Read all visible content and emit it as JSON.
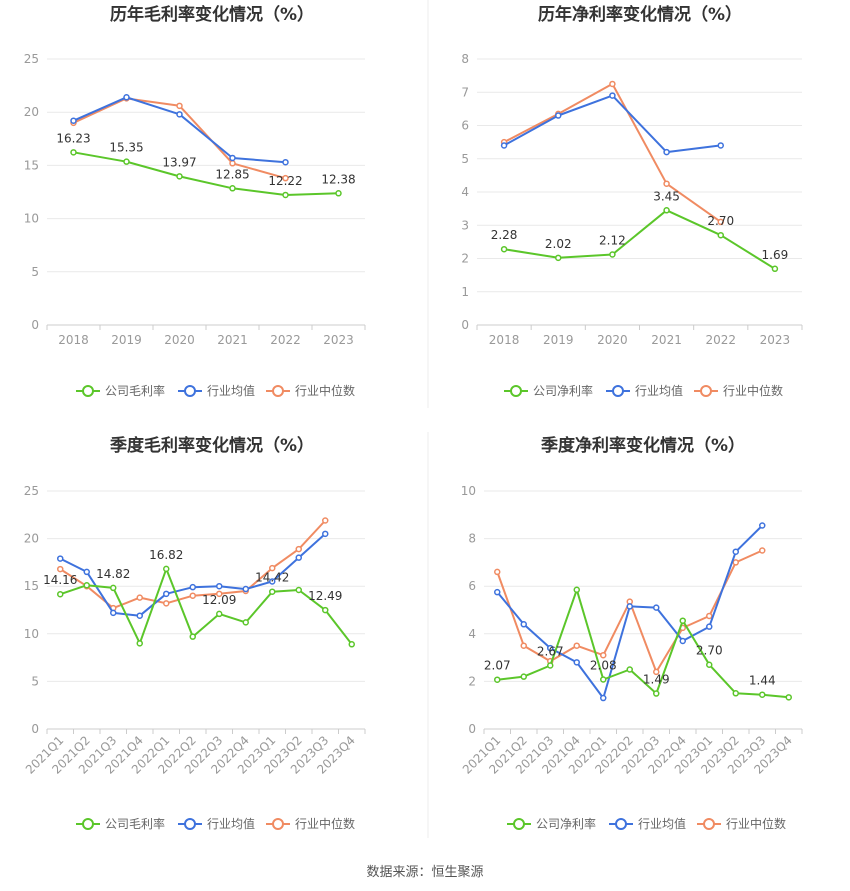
{
  "source_label": "数据来源：恒生聚源",
  "chart_data": [
    {
      "type": "line",
      "title": "历年毛利率变化情况（%）",
      "categories": [
        "2018",
        "2019",
        "2020",
        "2021",
        "2022",
        "2023"
      ],
      "ylim": [
        0,
        25
      ],
      "yticks": [
        0,
        5,
        10,
        15,
        20,
        25
      ],
      "grid": true,
      "legend": "bottom",
      "series": [
        {
          "name": "公司毛利率",
          "color": "#5bc62a",
          "values": [
            16.23,
            15.35,
            13.97,
            12.85,
            12.22,
            12.38
          ],
          "labels": [
            "16.23",
            "15.35",
            "13.97",
            "12.85",
            "12.22",
            "12.38"
          ]
        },
        {
          "name": "行业均值",
          "color": "#3e72dd",
          "values": [
            19.2,
            21.4,
            19.8,
            15.7,
            15.3,
            null
          ]
        },
        {
          "name": "行业中位数",
          "color": "#f08b62",
          "values": [
            19.0,
            21.3,
            20.6,
            15.2,
            13.8,
            null
          ]
        }
      ]
    },
    {
      "type": "line",
      "title": "历年净利率变化情况（%）",
      "categories": [
        "2018",
        "2019",
        "2020",
        "2021",
        "2022",
        "2023"
      ],
      "ylim": [
        0,
        8
      ],
      "yticks": [
        0,
        1,
        2,
        3,
        4,
        5,
        6,
        7,
        8
      ],
      "grid": true,
      "legend": "bottom",
      "series": [
        {
          "name": "公司净利率",
          "color": "#5bc62a",
          "values": [
            2.28,
            2.02,
            2.12,
            3.45,
            2.7,
            1.69
          ],
          "labels": [
            "2.28",
            "2.02",
            "2.12",
            "3.45",
            "2.70",
            "1.69"
          ]
        },
        {
          "name": "行业均值",
          "color": "#3e72dd",
          "values": [
            5.4,
            6.3,
            6.9,
            5.2,
            5.4,
            null
          ]
        },
        {
          "name": "行业中位数",
          "color": "#f08b62",
          "values": [
            5.5,
            6.35,
            7.25,
            4.25,
            3.1,
            null
          ]
        }
      ]
    },
    {
      "type": "line",
      "title": "季度毛利率变化情况（%）",
      "categories": [
        "2021Q1",
        "2021Q2",
        "2021Q3",
        "2021Q4",
        "2022Q1",
        "2022Q2",
        "2022Q3",
        "2022Q4",
        "2023Q1",
        "2023Q2",
        "2023Q3",
        "2023Q4"
      ],
      "ylim": [
        0,
        25
      ],
      "yticks": [
        0,
        5,
        10,
        15,
        20,
        25
      ],
      "grid": true,
      "legend": "bottom",
      "series": [
        {
          "name": "公司毛利率",
          "color": "#5bc62a",
          "values": [
            14.16,
            15.1,
            14.82,
            9.0,
            16.82,
            9.7,
            12.09,
            11.2,
            14.42,
            14.6,
            12.49,
            8.9
          ],
          "labels": [
            "14.16",
            null,
            "14.82",
            null,
            "16.82",
            null,
            "12.09",
            null,
            "14.42",
            null,
            "12.49",
            null
          ]
        },
        {
          "name": "行业均值",
          "color": "#3e72dd",
          "values": [
            17.9,
            16.5,
            12.2,
            11.9,
            14.2,
            14.9,
            15.0,
            14.7,
            15.5,
            18.0,
            20.5,
            null
          ]
        },
        {
          "name": "行业中位数",
          "color": "#f08b62",
          "values": [
            16.8,
            15.0,
            12.7,
            13.8,
            13.2,
            14.0,
            14.2,
            14.5,
            16.9,
            18.9,
            21.9,
            null
          ]
        }
      ]
    },
    {
      "type": "line",
      "title": "季度净利率变化情况（%）",
      "categories": [
        "2021Q1",
        "2021Q2",
        "2021Q3",
        "2021Q4",
        "2022Q1",
        "2022Q2",
        "2022Q3",
        "2022Q4",
        "2023Q1",
        "2023Q2",
        "2023Q3",
        "2023Q4"
      ],
      "ylim": [
        0,
        10
      ],
      "yticks": [
        0,
        2,
        4,
        6,
        8,
        10
      ],
      "grid": true,
      "legend": "bottom",
      "series": [
        {
          "name": "公司净利率",
          "color": "#5bc62a",
          "values": [
            2.07,
            2.2,
            2.67,
            5.85,
            2.08,
            2.5,
            1.49,
            4.55,
            2.7,
            1.5,
            1.44,
            1.33
          ],
          "labels": [
            "2.07",
            null,
            "2.67",
            null,
            "2.08",
            null,
            "1.49",
            null,
            "2.70",
            null,
            "1.44",
            null
          ]
        },
        {
          "name": "行业均值",
          "color": "#3e72dd",
          "values": [
            5.75,
            4.4,
            3.4,
            2.8,
            1.3,
            5.15,
            5.1,
            3.7,
            4.3,
            7.45,
            8.55,
            null
          ]
        },
        {
          "name": "行业中位数",
          "color": "#f08b62",
          "values": [
            6.6,
            3.5,
            2.85,
            3.5,
            3.1,
            5.35,
            2.4,
            4.25,
            4.75,
            7.0,
            7.5,
            null
          ]
        }
      ]
    }
  ]
}
